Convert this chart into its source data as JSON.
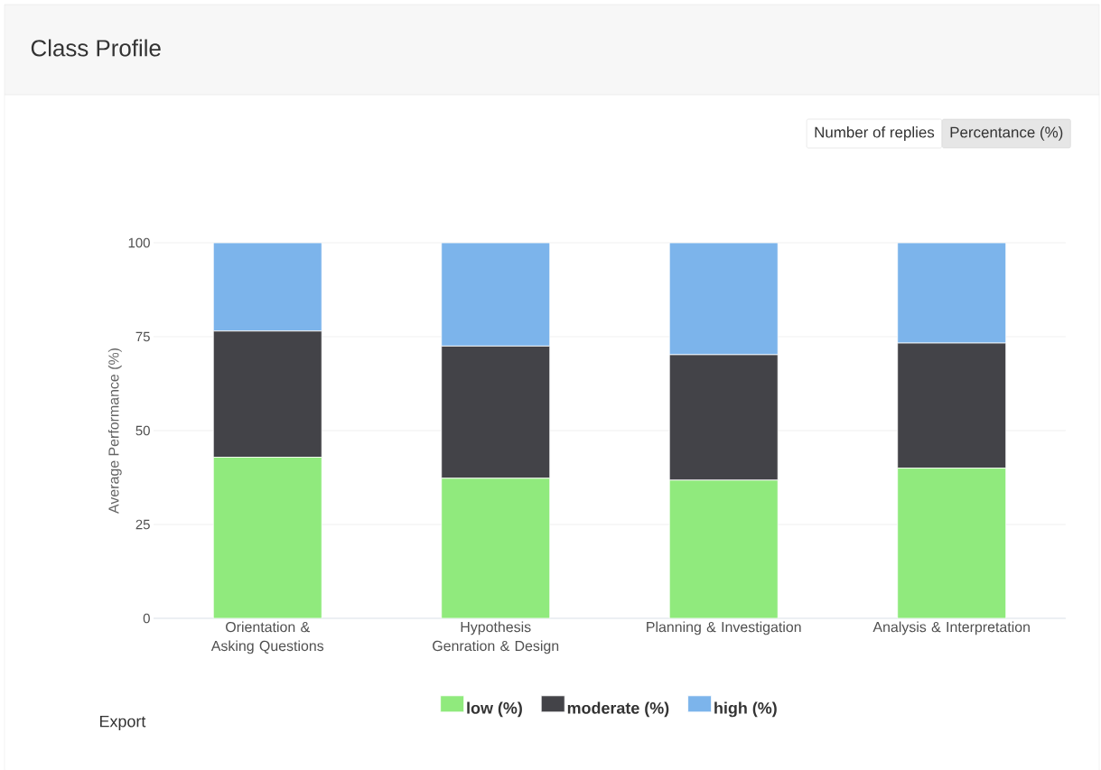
{
  "chart_data": {
    "type": "bar",
    "title": "Class Profile",
    "ylabel": "Average Performance (%)",
    "categories": [
      "Orientation & Asking Questions",
      "Hypothesis Genration & Design",
      "Planning & Investigation",
      "Analysis & Interpretation"
    ],
    "stacked": true,
    "series": [
      {
        "name": "low (%)",
        "color": "#90ea7d",
        "values": [
          42.9,
          37.3,
          36.8,
          40.0
        ]
      },
      {
        "name": "moderate (%)",
        "color": "#434348",
        "values": [
          33.6,
          35.2,
          33.4,
          33.3
        ]
      },
      {
        "name": "high (%)",
        "color": "#7cb4eb",
        "values": [
          23.5,
          27.5,
          29.8,
          26.7
        ]
      }
    ],
    "ylim": [
      0,
      100
    ],
    "yticks": [
      0,
      25,
      50,
      75,
      100
    ],
    "grid": "y",
    "legend": "bottom",
    "annotations": [
      "Number of replies",
      "Percentance (%)",
      "Export"
    ]
  }
}
